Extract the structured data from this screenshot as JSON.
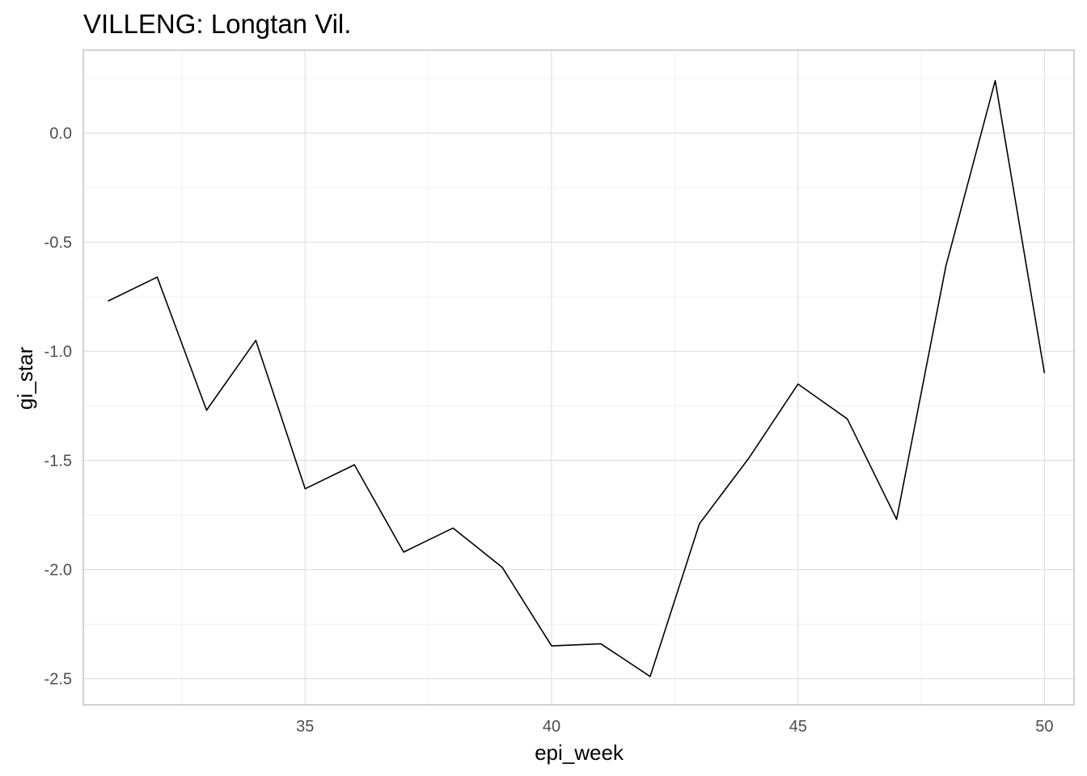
{
  "chart_data": {
    "type": "line",
    "title": "VILLENG: Longtan Vil.",
    "xlabel": "epi_week",
    "ylabel": "gi_star",
    "xlim": [
      30.5,
      50.6
    ],
    "ylim": [
      -2.62,
      0.38
    ],
    "x_ticks": [
      35,
      40,
      45,
      50
    ],
    "y_ticks": [
      0.0,
      -0.5,
      -1.0,
      -1.5,
      -2.0,
      -2.5
    ],
    "x_tick_labels": [
      "35",
      "40",
      "45",
      "50"
    ],
    "y_tick_labels": [
      "0.0",
      "-0.5",
      "-1.0",
      "-1.5",
      "-2.0",
      "-2.5"
    ],
    "grid": true,
    "legend": "none",
    "line_color": "#000000",
    "x": [
      31,
      32,
      33,
      34,
      35,
      36,
      37,
      38,
      39,
      40,
      41,
      42,
      43,
      44,
      45,
      46,
      47,
      48,
      49,
      50
    ],
    "values": [
      -0.77,
      -0.66,
      -1.27,
      -0.95,
      -1.63,
      -1.52,
      -1.92,
      -1.81,
      -1.99,
      -2.35,
      -2.34,
      -2.49,
      -1.79,
      -1.49,
      -1.15,
      -1.31,
      -1.77,
      -0.61,
      0.24,
      -1.1
    ]
  }
}
